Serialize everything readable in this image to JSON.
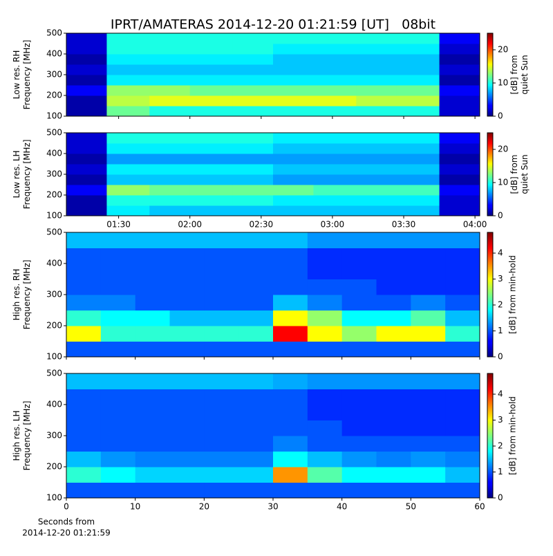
{
  "chart_data": [
    {
      "type": "heatmap",
      "title": "IPRT/AMATERAS 2014-12-20 01:21:59 [UT]   08bit",
      "colormap": "jet",
      "ylabel": [
        "Low res. RH",
        "Frequency [MHz]"
      ],
      "xlim": [
        68,
        242
      ],
      "ylim": [
        100,
        500
      ],
      "yticks": [
        100,
        200,
        300,
        400,
        500
      ],
      "xticks": [
        90,
        120,
        150,
        180,
        210,
        240
      ],
      "xticklabels": false,
      "x_edges": [
        68,
        85,
        103,
        120,
        138,
        155,
        172,
        190,
        207,
        225,
        242
      ],
      "y_edges": [
        100,
        150,
        200,
        250,
        300,
        350,
        400,
        450,
        500
      ],
      "z": [
        [
          1,
          12,
          10,
          10,
          10,
          10,
          10,
          10,
          10,
          2
        ],
        [
          1,
          14,
          15,
          15,
          15,
          15,
          15,
          14,
          14,
          2
        ],
        [
          3,
          13,
          13,
          12,
          12,
          12,
          12,
          12,
          12,
          3
        ],
        [
          1,
          9,
          9,
          9,
          9,
          9,
          9,
          9,
          9,
          1
        ],
        [
          2,
          8,
          8,
          8,
          8,
          8,
          8,
          8,
          8,
          2
        ],
        [
          1,
          9,
          9,
          9,
          9,
          8,
          8,
          8,
          8,
          1
        ],
        [
          2,
          10,
          10,
          10,
          10,
          9,
          9,
          9,
          9,
          2
        ],
        [
          2,
          10,
          10,
          10,
          10,
          10,
          10,
          10,
          10,
          3
        ]
      ],
      "colorbar": {
        "label": [
          "[dB] from",
          "quiet Sun"
        ],
        "lim": [
          0,
          25
        ],
        "ticks": [
          0,
          10,
          20
        ]
      }
    },
    {
      "type": "heatmap",
      "colormap": "jet",
      "ylabel": [
        "Low res. LH",
        "Frequency [MHz]"
      ],
      "xlim": [
        68,
        242
      ],
      "ylim": [
        100,
        500
      ],
      "yticks": [
        100,
        200,
        300,
        400,
        500
      ],
      "xticks": [
        {
          "value": 90,
          "label": "01:30"
        },
        {
          "value": 120,
          "label": "02:00"
        },
        {
          "value": 150,
          "label": "02:30"
        },
        {
          "value": 180,
          "label": "03:00"
        },
        {
          "value": 210,
          "label": "03:30"
        },
        {
          "value": 240,
          "label": "04:00"
        }
      ],
      "xticklabels": true,
      "x_edges": [
        68,
        85,
        103,
        120,
        138,
        155,
        172,
        190,
        207,
        225,
        242
      ],
      "y_edges": [
        100,
        150,
        200,
        250,
        300,
        350,
        400,
        450,
        500
      ],
      "z": [
        [
          1,
          9,
          8,
          8,
          8,
          8,
          8,
          8,
          8,
          2
        ],
        [
          1,
          10,
          10,
          10,
          10,
          9,
          9,
          9,
          9,
          2
        ],
        [
          3,
          13,
          12,
          12,
          12,
          12,
          11,
          11,
          11,
          3
        ],
        [
          1,
          8,
          8,
          8,
          8,
          7,
          7,
          7,
          7,
          1
        ],
        [
          2,
          9,
          9,
          9,
          9,
          8,
          8,
          8,
          8,
          2
        ],
        [
          1,
          7,
          7,
          7,
          7,
          7,
          7,
          7,
          7,
          1
        ],
        [
          2,
          9,
          9,
          9,
          9,
          8,
          8,
          8,
          8,
          2
        ],
        [
          2,
          10,
          10,
          10,
          10,
          9,
          9,
          9,
          9,
          3
        ]
      ],
      "colorbar": {
        "label": [
          "[dB] from",
          "quiet Sun"
        ],
        "lim": [
          0,
          25
        ],
        "ticks": [
          0,
          10,
          20
        ]
      }
    },
    {
      "type": "heatmap",
      "colormap": "jet",
      "ylabel": [
        "High res. RH",
        "Frequency [MHz]"
      ],
      "xlim": [
        0,
        60
      ],
      "ylim": [
        100,
        500
      ],
      "yticks": [
        100,
        200,
        300,
        400,
        500
      ],
      "xticks": [
        0,
        10,
        20,
        30,
        40,
        50,
        60
      ],
      "xticklabels": false,
      "x_edges": [
        0,
        5,
        10,
        15,
        20,
        25,
        30,
        35,
        40,
        45,
        50,
        55,
        60
      ],
      "y_edges": [
        100,
        150,
        200,
        250,
        300,
        350,
        400,
        450,
        500
      ],
      "z": [
        [
          1,
          1,
          1,
          1,
          1,
          1,
          1,
          1,
          1,
          1,
          1,
          1
        ],
        [
          3,
          2,
          2,
          2,
          2,
          2,
          4.2,
          3,
          2.5,
          3,
          3,
          2
        ],
        [
          2,
          1.8,
          1.8,
          1.5,
          1.5,
          1.5,
          3,
          2.5,
          1.8,
          1.8,
          2.2,
          1.5
        ],
        [
          1.2,
          1.2,
          1,
          1,
          1,
          1,
          1.5,
          1.2,
          1,
          1,
          1.2,
          1
        ],
        [
          1,
          1,
          1,
          1,
          1,
          1,
          1,
          1,
          1,
          0.8,
          0.8,
          0.8
        ],
        [
          1,
          1,
          1,
          1,
          1,
          1,
          1,
          0.8,
          0.8,
          0.8,
          0.8,
          0.8
        ],
        [
          1,
          1,
          1,
          1,
          1,
          1,
          1,
          0.8,
          0.8,
          0.8,
          0.8,
          0.8
        ],
        [
          1.5,
          1.5,
          1.5,
          1.5,
          1.5,
          1.5,
          1.5,
          1.3,
          1.3,
          1.3,
          1.3,
          1.3
        ]
      ],
      "colorbar": {
        "label": [
          "[dB] from min-hold"
        ],
        "lim": [
          0,
          4.8
        ],
        "ticks": [
          0,
          1,
          2,
          3,
          4
        ]
      }
    },
    {
      "type": "heatmap",
      "colormap": "jet",
      "ylabel": [
        "High res. LH",
        "Frequency [MHz]"
      ],
      "xlabel": [
        "Seconds from",
        "2014-12-20 01:21:59"
      ],
      "xlim": [
        0,
        60
      ],
      "ylim": [
        100,
        500
      ],
      "yticks": [
        100,
        200,
        300,
        400,
        500
      ],
      "xticks": [
        0,
        10,
        20,
        30,
        40,
        50,
        60
      ],
      "xticklabels": true,
      "x_edges": [
        0,
        5,
        10,
        15,
        20,
        25,
        30,
        35,
        40,
        45,
        50,
        55,
        60
      ],
      "y_edges": [
        100,
        150,
        200,
        250,
        300,
        350,
        400,
        450,
        500
      ],
      "z": [
        [
          1,
          1,
          1,
          1,
          1,
          1,
          1,
          1,
          1,
          1,
          1,
          1
        ],
        [
          2,
          1.8,
          1.6,
          1.6,
          1.6,
          1.6,
          3.5,
          2.2,
          1.8,
          1.8,
          1.8,
          1.5
        ],
        [
          1.5,
          1.3,
          1.2,
          1.2,
          1.2,
          1.2,
          1.8,
          1.5,
          1.3,
          1.2,
          1.3,
          1.2
        ],
        [
          1,
          1,
          1,
          1,
          1,
          1,
          1.2,
          1,
          1,
          1,
          1,
          1
        ],
        [
          1,
          1,
          1,
          1,
          1,
          1,
          1,
          1,
          0.8,
          0.8,
          0.8,
          0.8
        ],
        [
          1,
          1,
          1,
          1,
          1,
          1,
          1,
          0.8,
          0.8,
          0.8,
          0.8,
          0.8
        ],
        [
          1,
          1,
          1,
          1,
          1,
          1,
          1,
          0.8,
          0.8,
          0.8,
          0.8,
          0.8
        ],
        [
          1.5,
          1.5,
          1.5,
          1.5,
          1.5,
          1.5,
          1.4,
          1.3,
          1.3,
          1.3,
          1.3,
          1.3
        ]
      ],
      "colorbar": {
        "label": [
          "[dB] from min-hold"
        ],
        "lim": [
          0,
          4.8
        ],
        "ticks": [
          0,
          1,
          2,
          3,
          4
        ]
      }
    }
  ]
}
